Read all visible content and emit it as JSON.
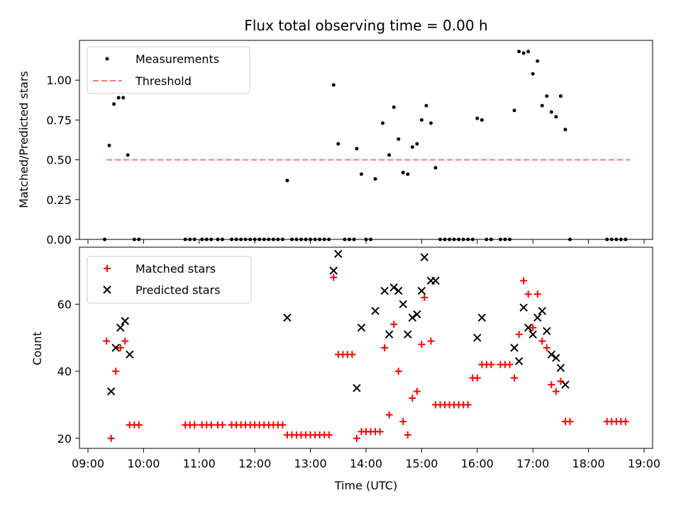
{
  "chart_data": [
    {
      "type": "scatter",
      "title": "Flux total observing time = 0.00 h",
      "xlabel": "",
      "ylabel": "Matched/Predicted stars",
      "xlim": [
        "09:00",
        "19:00"
      ],
      "ylim": [
        0,
        1.25
      ],
      "yticks": [
        "0.00",
        "0.25",
        "0.50",
        "0.75",
        "1.00"
      ],
      "legend": "top-left",
      "series": [
        {
          "name": "Measurements",
          "marker": "dot",
          "color": "#000000",
          "points": [
            [
              "09:18",
              0.0
            ],
            [
              "09:23",
              0.59
            ],
            [
              "09:28",
              0.85
            ],
            [
              "09:33",
              0.89
            ],
            [
              "09:38",
              0.89
            ],
            [
              "09:43",
              0.53
            ],
            [
              "09:50",
              0.0
            ],
            [
              "09:55",
              0.0
            ],
            [
              "10:45",
              0.0
            ],
            [
              "10:50",
              0.0
            ],
            [
              "10:55",
              0.0
            ],
            [
              "11:03",
              0.0
            ],
            [
              "11:08",
              0.0
            ],
            [
              "11:13",
              0.0
            ],
            [
              "11:20",
              0.0
            ],
            [
              "11:25",
              0.0
            ],
            [
              "11:35",
              0.0
            ],
            [
              "11:40",
              0.0
            ],
            [
              "11:45",
              0.0
            ],
            [
              "11:50",
              0.0
            ],
            [
              "11:55",
              0.0
            ],
            [
              "12:00",
              0.0
            ],
            [
              "12:05",
              0.0
            ],
            [
              "12:10",
              0.0
            ],
            [
              "12:15",
              0.0
            ],
            [
              "12:20",
              0.0
            ],
            [
              "12:25",
              0.0
            ],
            [
              "12:30",
              0.0
            ],
            [
              "12:35",
              0.37
            ],
            [
              "12:40",
              0.0
            ],
            [
              "12:45",
              0.0
            ],
            [
              "12:50",
              0.0
            ],
            [
              "12:55",
              0.0
            ],
            [
              "13:00",
              0.0
            ],
            [
              "13:05",
              0.0
            ],
            [
              "13:10",
              0.0
            ],
            [
              "13:15",
              0.0
            ],
            [
              "13:20",
              0.0
            ],
            [
              "13:25",
              0.97
            ],
            [
              "13:30",
              0.6
            ],
            [
              "13:37",
              0.0
            ],
            [
              "13:42",
              0.0
            ],
            [
              "13:47",
              0.0
            ],
            [
              "13:50",
              0.57
            ],
            [
              "13:55",
              0.41
            ],
            [
              "14:00",
              0.0
            ],
            [
              "14:05",
              0.0
            ],
            [
              "14:10",
              0.38
            ],
            [
              "14:18",
              0.73
            ],
            [
              "14:25",
              0.53
            ],
            [
              "14:30",
              0.83
            ],
            [
              "14:35",
              0.63
            ],
            [
              "14:40",
              0.42
            ],
            [
              "14:45",
              0.41
            ],
            [
              "14:50",
              0.58
            ],
            [
              "14:55",
              0.6
            ],
            [
              "15:00",
              0.75
            ],
            [
              "15:05",
              0.84
            ],
            [
              "15:10",
              0.73
            ],
            [
              "15:15",
              0.45
            ],
            [
              "15:20",
              0.0
            ],
            [
              "15:25",
              0.0
            ],
            [
              "15:30",
              0.0
            ],
            [
              "15:35",
              0.0
            ],
            [
              "15:40",
              0.0
            ],
            [
              "15:45",
              0.0
            ],
            [
              "15:50",
              0.0
            ],
            [
              "15:55",
              0.0
            ],
            [
              "16:00",
              0.76
            ],
            [
              "16:05",
              0.75
            ],
            [
              "16:10",
              0.0
            ],
            [
              "16:15",
              0.0
            ],
            [
              "16:25",
              0.0
            ],
            [
              "16:30",
              0.0
            ],
            [
              "16:35",
              0.0
            ],
            [
              "16:40",
              0.81
            ],
            [
              "16:45",
              1.18
            ],
            [
              "16:50",
              1.17
            ],
            [
              "16:55",
              1.18
            ],
            [
              "17:00",
              1.04
            ],
            [
              "17:05",
              1.12
            ],
            [
              "17:10",
              0.84
            ],
            [
              "17:15",
              0.9
            ],
            [
              "17:20",
              0.8
            ],
            [
              "17:25",
              0.77
            ],
            [
              "17:30",
              0.9
            ],
            [
              "17:35",
              0.69
            ],
            [
              "17:40",
              0.0
            ],
            [
              "18:20",
              0.0
            ],
            [
              "18:25",
              0.0
            ],
            [
              "18:30",
              0.0
            ],
            [
              "18:35",
              0.0
            ],
            [
              "18:40",
              0.0
            ]
          ]
        },
        {
          "name": "Threshold",
          "marker": "dashed-line",
          "color": "#ff7777",
          "points": [
            [
              "09:20",
              0.5
            ],
            [
              "18:45",
              0.5
            ]
          ]
        }
      ]
    },
    {
      "type": "scatter",
      "title": "",
      "xlabel": "Time (UTC)",
      "ylabel": "Count",
      "xlim": [
        "09:00",
        "19:00"
      ],
      "ylim": [
        17,
        77
      ],
      "yticks": [
        "20",
        "40",
        "60"
      ],
      "xticks": [
        "09:00",
        "10:00",
        "11:00",
        "12:00",
        "13:00",
        "14:00",
        "15:00",
        "16:00",
        "17:00",
        "18:00",
        "19:00"
      ],
      "legend": "top-left",
      "series": [
        {
          "name": "Matched stars",
          "marker": "plus",
          "color": "#ff0000",
          "points": [
            [
              "09:20",
              49
            ],
            [
              "09:25",
              20
            ],
            [
              "09:30",
              40
            ],
            [
              "09:35",
              47
            ],
            [
              "09:40",
              49
            ],
            [
              "09:45",
              24
            ],
            [
              "09:50",
              24
            ],
            [
              "09:55",
              24
            ],
            [
              "10:45",
              24
            ],
            [
              "10:50",
              24
            ],
            [
              "10:55",
              24
            ],
            [
              "11:03",
              24
            ],
            [
              "11:08",
              24
            ],
            [
              "11:13",
              24
            ],
            [
              "11:20",
              24
            ],
            [
              "11:25",
              24
            ],
            [
              "11:35",
              24
            ],
            [
              "11:40",
              24
            ],
            [
              "11:45",
              24
            ],
            [
              "11:50",
              24
            ],
            [
              "11:55",
              24
            ],
            [
              "12:00",
              24
            ],
            [
              "12:05",
              24
            ],
            [
              "12:10",
              24
            ],
            [
              "12:15",
              24
            ],
            [
              "12:20",
              24
            ],
            [
              "12:25",
              24
            ],
            [
              "12:30",
              24
            ],
            [
              "12:35",
              21
            ],
            [
              "12:40",
              21
            ],
            [
              "12:45",
              21
            ],
            [
              "12:50",
              21
            ],
            [
              "12:55",
              21
            ],
            [
              "13:00",
              21
            ],
            [
              "13:05",
              21
            ],
            [
              "13:10",
              21
            ],
            [
              "13:15",
              21
            ],
            [
              "13:20",
              21
            ],
            [
              "13:25",
              68
            ],
            [
              "13:30",
              45
            ],
            [
              "13:35",
              45
            ],
            [
              "13:40",
              45
            ],
            [
              "13:45",
              45
            ],
            [
              "13:50",
              20
            ],
            [
              "13:55",
              22
            ],
            [
              "14:00",
              22
            ],
            [
              "14:05",
              22
            ],
            [
              "14:10",
              22
            ],
            [
              "14:15",
              22
            ],
            [
              "14:20",
              47
            ],
            [
              "14:25",
              27
            ],
            [
              "14:30",
              54
            ],
            [
              "14:35",
              40
            ],
            [
              "14:40",
              25
            ],
            [
              "14:45",
              21
            ],
            [
              "14:50",
              32
            ],
            [
              "14:55",
              34
            ],
            [
              "15:00",
              48
            ],
            [
              "15:03",
              62
            ],
            [
              "15:10",
              49
            ],
            [
              "15:15",
              30
            ],
            [
              "15:20",
              30
            ],
            [
              "15:25",
              30
            ],
            [
              "15:30",
              30
            ],
            [
              "15:35",
              30
            ],
            [
              "15:40",
              30
            ],
            [
              "15:45",
              30
            ],
            [
              "15:50",
              30
            ],
            [
              "15:55",
              38
            ],
            [
              "16:00",
              38
            ],
            [
              "16:05",
              42
            ],
            [
              "16:10",
              42
            ],
            [
              "16:15",
              42
            ],
            [
              "16:25",
              42
            ],
            [
              "16:30",
              42
            ],
            [
              "16:35",
              42
            ],
            [
              "16:40",
              38
            ],
            [
              "16:45",
              51
            ],
            [
              "16:50",
              67
            ],
            [
              "16:55",
              63
            ],
            [
              "17:00",
              53
            ],
            [
              "17:05",
              63
            ],
            [
              "17:10",
              49
            ],
            [
              "17:15",
              47
            ],
            [
              "17:20",
              36
            ],
            [
              "17:25",
              34
            ],
            [
              "17:30",
              37
            ],
            [
              "17:35",
              25
            ],
            [
              "17:40",
              25
            ],
            [
              "18:20",
              25
            ],
            [
              "18:25",
              25
            ],
            [
              "18:30",
              25
            ],
            [
              "18:35",
              25
            ],
            [
              "18:40",
              25
            ]
          ]
        },
        {
          "name": "Predicted stars",
          "marker": "x",
          "color": "#000000",
          "points": [
            [
              "09:25",
              34
            ],
            [
              "09:30",
              47
            ],
            [
              "09:35",
              53
            ],
            [
              "09:40",
              55
            ],
            [
              "09:45",
              45
            ],
            [
              "12:35",
              56
            ],
            [
              "13:25",
              70
            ],
            [
              "13:30",
              75
            ],
            [
              "13:50",
              35
            ],
            [
              "13:55",
              53
            ],
            [
              "14:10",
              58
            ],
            [
              "14:20",
              64
            ],
            [
              "14:25",
              51
            ],
            [
              "14:30",
              65
            ],
            [
              "14:35",
              64
            ],
            [
              "14:40",
              60
            ],
            [
              "14:45",
              51
            ],
            [
              "14:50",
              56
            ],
            [
              "14:55",
              57
            ],
            [
              "15:00",
              64
            ],
            [
              "15:03",
              74
            ],
            [
              "15:10",
              67
            ],
            [
              "15:15",
              67
            ],
            [
              "16:00",
              50
            ],
            [
              "16:05",
              56
            ],
            [
              "16:40",
              47
            ],
            [
              "16:45",
              43
            ],
            [
              "16:50",
              59
            ],
            [
              "16:55",
              53
            ],
            [
              "17:00",
              51
            ],
            [
              "17:05",
              56
            ],
            [
              "17:10",
              58
            ],
            [
              "17:15",
              52
            ],
            [
              "17:20",
              45
            ],
            [
              "17:25",
              44
            ],
            [
              "17:30",
              41
            ],
            [
              "17:35",
              36
            ]
          ]
        }
      ]
    }
  ]
}
